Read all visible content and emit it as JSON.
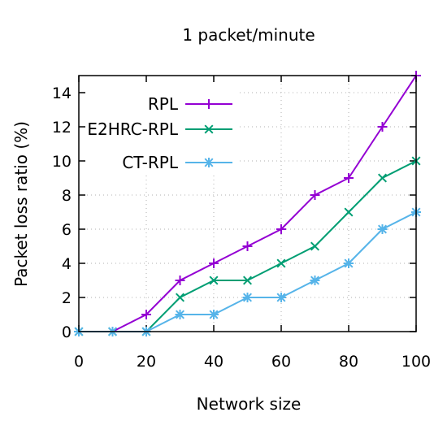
{
  "chart_data": {
    "type": "line",
    "title": "1 packet/minute",
    "xlabel": "Network size",
    "ylabel": "Packet loss ratio (%)",
    "xlim": [
      0,
      100
    ],
    "ylim": [
      0,
      15
    ],
    "xticks": [
      0,
      20,
      40,
      60,
      80,
      100
    ],
    "yticks": [
      0,
      2,
      4,
      6,
      8,
      10,
      12,
      14
    ],
    "grid": true,
    "legend_position": "top-left",
    "x": [
      0,
      10,
      20,
      30,
      40,
      50,
      60,
      70,
      80,
      90,
      100
    ],
    "series": [
      {
        "name": "RPL",
        "color": "#9400d3",
        "marker": "plus",
        "values": [
          0,
          0,
          1,
          3,
          4,
          5,
          6,
          8,
          9,
          12,
          15
        ]
      },
      {
        "name": "E2HRC-RPL",
        "color": "#009e73",
        "marker": "cross",
        "values": [
          0,
          0,
          0,
          2,
          3,
          3,
          4,
          5,
          7,
          9,
          10
        ]
      },
      {
        "name": "CT-RPL",
        "color": "#56b4e9",
        "marker": "star",
        "values": [
          0,
          0,
          0,
          1,
          1,
          2,
          2,
          3,
          4,
          6,
          7
        ]
      }
    ]
  }
}
